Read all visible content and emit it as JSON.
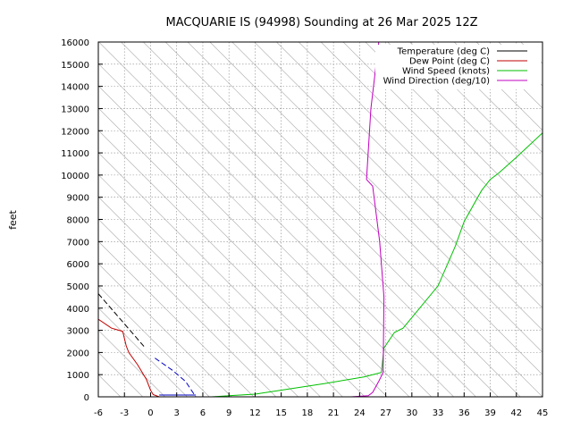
{
  "chart_data": {
    "type": "line",
    "title": "MACQUARIE IS (94998) Sounding at 26 Mar 2025 12Z",
    "ylabel": "feet",
    "xlabel": "",
    "xlim": [
      -6,
      45
    ],
    "ylim": [
      0,
      16000
    ],
    "x_ticks": [
      "-6",
      "-3",
      "0",
      "3",
      "6",
      "9",
      "12",
      "15",
      "18",
      "21",
      "24",
      "27",
      "30",
      "33",
      "36",
      "39",
      "42",
      "45"
    ],
    "y_ticks": [
      "0",
      "1000",
      "2000",
      "3000",
      "4000",
      "5000",
      "6000",
      "7000",
      "8000",
      "9000",
      "10000",
      "11000",
      "12000",
      "13000",
      "14000",
      "15000",
      "16000"
    ],
    "grid": true,
    "legend_position": "top-right",
    "series": [
      {
        "name": "Temperature (deg C)",
        "color": "#000000",
        "points": [
          [
            -6,
            4650
          ],
          [
            -0.7,
            2250
          ]
        ]
      },
      {
        "name": "Dew Point (deg C)",
        "color": "#c00000",
        "points": [
          [
            -6,
            3500
          ],
          [
            -4.5,
            3100
          ],
          [
            -3.2,
            2950
          ],
          [
            -2.8,
            2300
          ],
          [
            -2.5,
            2000
          ],
          [
            -1.5,
            1450
          ],
          [
            -0.5,
            800
          ],
          [
            0,
            300
          ],
          [
            0.3,
            100
          ],
          [
            1,
            0
          ]
        ]
      },
      {
        "name": "Wind Speed (knots)",
        "color": "#00c000",
        "points": [
          [
            7,
            0
          ],
          [
            12,
            120
          ],
          [
            20,
            600
          ],
          [
            24.5,
            900
          ],
          [
            26.5,
            1100
          ],
          [
            26.8,
            2200
          ],
          [
            28,
            2900
          ],
          [
            29,
            3100
          ],
          [
            33,
            5000
          ],
          [
            35,
            6800
          ],
          [
            36,
            7900
          ],
          [
            38,
            9300
          ],
          [
            39,
            9800
          ],
          [
            40,
            10100
          ],
          [
            42,
            10800
          ],
          [
            45,
            11900
          ]
        ]
      },
      {
        "name": "Wind Direction (deg/10)",
        "color": "#c000c0",
        "points": [
          [
            23,
            0
          ],
          [
            25,
            50
          ],
          [
            25.5,
            200
          ],
          [
            26.2,
            700
          ],
          [
            26.7,
            1100
          ],
          [
            26.8,
            4500
          ],
          [
            26.3,
            7000
          ],
          [
            25.5,
            9500
          ],
          [
            24.8,
            9800
          ],
          [
            25.3,
            13000
          ],
          [
            26.2,
            16000
          ]
        ]
      }
    ],
    "isotherm_color": "#aaaaaa",
    "partial_overlay": {
      "color": "#0000c0",
      "points": [
        [
          0.5,
          1750
        ],
        [
          2.5,
          1200
        ],
        [
          4,
          700
        ],
        [
          5.2,
          0
        ]
      ],
      "lower_points": [
        [
          1,
          80
        ],
        [
          5.2,
          80
        ]
      ]
    }
  }
}
